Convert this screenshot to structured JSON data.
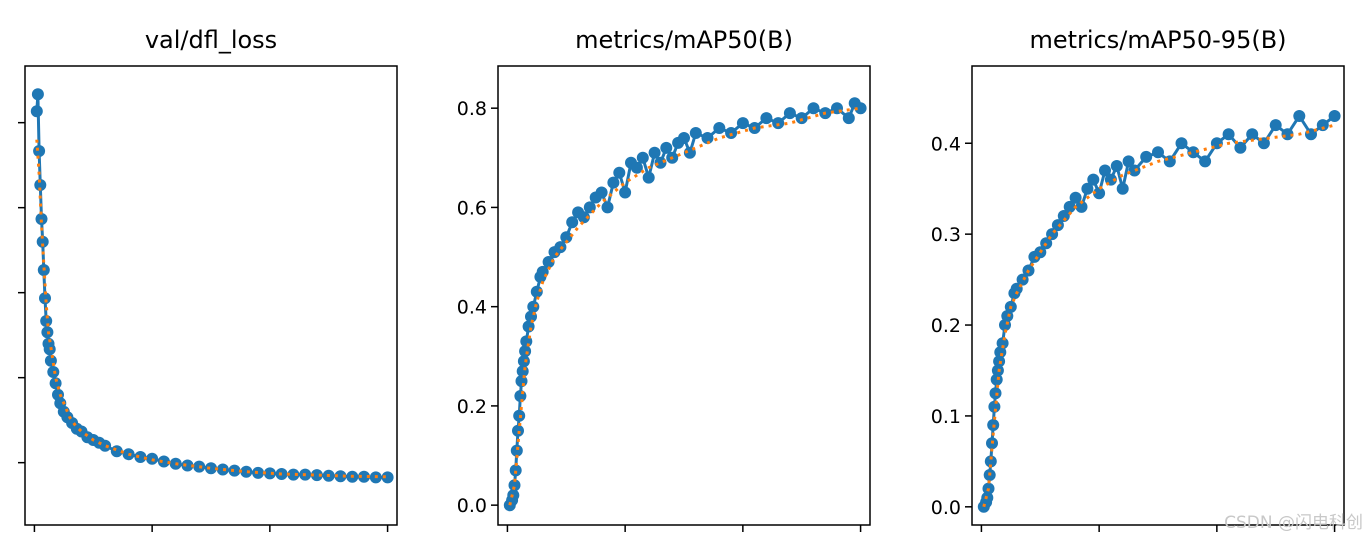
{
  "watermark": "CSDN @闪电科创",
  "colors": {
    "series": "#1f77b4",
    "smooth": "#ff7f0e",
    "axes": "#000000"
  },
  "chart_data": [
    {
      "type": "line",
      "title": "val/dfl_loss",
      "xlim": [
        -8,
        308
      ],
      "ylim": [
        1.24,
        2.05
      ],
      "yticks": [
        1.35,
        1.5,
        1.65,
        1.8,
        1.95
      ],
      "yticklabels": [
        "",
        "",
        "",
        "",
        ""
      ],
      "xticks": [
        0,
        100,
        200,
        300
      ],
      "xticklabels": [
        "",
        "",
        "",
        ""
      ],
      "series": [
        {
          "name": "",
          "style": "line-marker",
          "x": [
            2,
            3,
            4,
            5,
            6,
            7,
            8,
            9,
            10,
            11,
            12,
            13,
            14,
            16,
            18,
            20,
            22,
            25,
            28,
            32,
            36,
            40,
            45,
            50,
            55,
            60,
            70,
            80,
            90,
            100,
            110,
            120,
            130,
            140,
            150,
            160,
            170,
            180,
            190,
            200,
            210,
            220,
            230,
            240,
            250,
            260,
            270,
            280,
            290,
            300
          ],
          "y": [
            1.97,
            2.0,
            1.9,
            1.84,
            1.78,
            1.74,
            1.69,
            1.64,
            1.6,
            1.58,
            1.56,
            1.55,
            1.53,
            1.51,
            1.49,
            1.47,
            1.455,
            1.44,
            1.43,
            1.42,
            1.41,
            1.405,
            1.395,
            1.39,
            1.385,
            1.38,
            1.37,
            1.365,
            1.36,
            1.357,
            1.352,
            1.348,
            1.345,
            1.343,
            1.34,
            1.338,
            1.336,
            1.334,
            1.332,
            1.331,
            1.33,
            1.329,
            1.329,
            1.328,
            1.327,
            1.326,
            1.325,
            1.325,
            1.324,
            1.324
          ]
        },
        {
          "name": "",
          "style": "smooth",
          "x": [
            2,
            4,
            6,
            8,
            10,
            12,
            15,
            18,
            22,
            26,
            30,
            35,
            40,
            50,
            60,
            80,
            100,
            120,
            150,
            180,
            210,
            240,
            270,
            300
          ],
          "y": [
            1.92,
            1.86,
            1.77,
            1.7,
            1.63,
            1.58,
            1.54,
            1.5,
            1.47,
            1.45,
            1.43,
            1.415,
            1.405,
            1.39,
            1.38,
            1.365,
            1.355,
            1.348,
            1.34,
            1.334,
            1.33,
            1.328,
            1.326,
            1.325
          ]
        }
      ]
    },
    {
      "type": "line",
      "title": "metrics/mAP50(B)",
      "xlim": [
        -8,
        308
      ],
      "ylim": [
        -0.04,
        0.885
      ],
      "yticks": [
        0.0,
        0.2,
        0.4,
        0.6,
        0.8
      ],
      "yticklabels": [
        "0.0",
        "0.2",
        "0.4",
        "0.6",
        "0.8"
      ],
      "xticks": [
        0,
        100,
        200,
        300
      ],
      "xticklabels": [
        "",
        "",
        "",
        ""
      ],
      "series": [
        {
          "name": "",
          "style": "line-marker",
          "x": [
            2,
            4,
            5,
            6,
            7,
            8,
            9,
            10,
            11,
            12,
            13,
            14,
            15,
            16,
            18,
            20,
            22,
            25,
            28,
            30,
            35,
            40,
            45,
            50,
            55,
            60,
            65,
            70,
            75,
            80,
            85,
            90,
            95,
            100,
            105,
            110,
            115,
            120,
            125,
            130,
            135,
            140,
            145,
            150,
            155,
            160,
            170,
            180,
            190,
            200,
            210,
            220,
            230,
            240,
            250,
            260,
            270,
            280,
            290,
            295,
            300
          ],
          "y": [
            0.0,
            0.01,
            0.02,
            0.04,
            0.07,
            0.11,
            0.15,
            0.18,
            0.22,
            0.25,
            0.27,
            0.29,
            0.31,
            0.33,
            0.36,
            0.38,
            0.4,
            0.43,
            0.46,
            0.47,
            0.49,
            0.51,
            0.52,
            0.54,
            0.57,
            0.59,
            0.58,
            0.6,
            0.62,
            0.63,
            0.6,
            0.65,
            0.67,
            0.63,
            0.69,
            0.68,
            0.7,
            0.66,
            0.71,
            0.69,
            0.72,
            0.7,
            0.73,
            0.74,
            0.71,
            0.75,
            0.74,
            0.76,
            0.75,
            0.77,
            0.76,
            0.78,
            0.77,
            0.79,
            0.78,
            0.8,
            0.79,
            0.8,
            0.78,
            0.81,
            0.8
          ]
        },
        {
          "name": "",
          "style": "smooth",
          "x": [
            2,
            6,
            10,
            15,
            20,
            25,
            30,
            40,
            50,
            60,
            80,
            100,
            120,
            150,
            180,
            210,
            240,
            270,
            300
          ],
          "y": [
            0.0,
            0.04,
            0.15,
            0.28,
            0.36,
            0.41,
            0.45,
            0.5,
            0.53,
            0.56,
            0.61,
            0.65,
            0.68,
            0.71,
            0.74,
            0.76,
            0.77,
            0.79,
            0.8
          ]
        }
      ]
    },
    {
      "type": "line",
      "title": "metrics/mAP50-95(B)",
      "xlim": [
        -8,
        308
      ],
      "ylim": [
        -0.02,
        0.485
      ],
      "yticks": [
        0.0,
        0.1,
        0.2,
        0.3,
        0.4
      ],
      "yticklabels": [
        "0.0",
        "0.1",
        "0.2",
        "0.3",
        "0.4"
      ],
      "xticks": [
        0,
        100,
        200,
        300
      ],
      "xticklabels": [
        "",
        "",
        "",
        ""
      ],
      "series": [
        {
          "name": "",
          "style": "line-marker",
          "x": [
            2,
            4,
            5,
            6,
            7,
            8,
            9,
            10,
            11,
            12,
            13,
            14,
            15,
            16,
            18,
            20,
            22,
            25,
            28,
            30,
            35,
            40,
            45,
            50,
            55,
            60,
            65,
            70,
            75,
            80,
            85,
            90,
            95,
            100,
            105,
            110,
            115,
            120,
            125,
            130,
            140,
            150,
            160,
            170,
            180,
            190,
            200,
            210,
            220,
            230,
            240,
            250,
            260,
            270,
            280,
            290,
            300
          ],
          "y": [
            0.0,
            0.005,
            0.01,
            0.02,
            0.035,
            0.05,
            0.07,
            0.09,
            0.11,
            0.125,
            0.14,
            0.15,
            0.16,
            0.17,
            0.18,
            0.2,
            0.21,
            0.22,
            0.235,
            0.24,
            0.25,
            0.26,
            0.275,
            0.28,
            0.29,
            0.3,
            0.31,
            0.32,
            0.33,
            0.34,
            0.33,
            0.35,
            0.36,
            0.345,
            0.37,
            0.36,
            0.375,
            0.35,
            0.38,
            0.37,
            0.385,
            0.39,
            0.38,
            0.4,
            0.39,
            0.38,
            0.4,
            0.41,
            0.395,
            0.41,
            0.4,
            0.42,
            0.41,
            0.43,
            0.41,
            0.42,
            0.43
          ]
        },
        {
          "name": "",
          "style": "smooth",
          "x": [
            2,
            6,
            10,
            15,
            20,
            25,
            30,
            40,
            50,
            60,
            80,
            100,
            120,
            150,
            180,
            210,
            240,
            270,
            300
          ],
          "y": [
            0.0,
            0.02,
            0.08,
            0.15,
            0.19,
            0.22,
            0.235,
            0.26,
            0.28,
            0.3,
            0.33,
            0.35,
            0.365,
            0.38,
            0.39,
            0.4,
            0.405,
            0.41,
            0.42
          ]
        }
      ]
    }
  ]
}
